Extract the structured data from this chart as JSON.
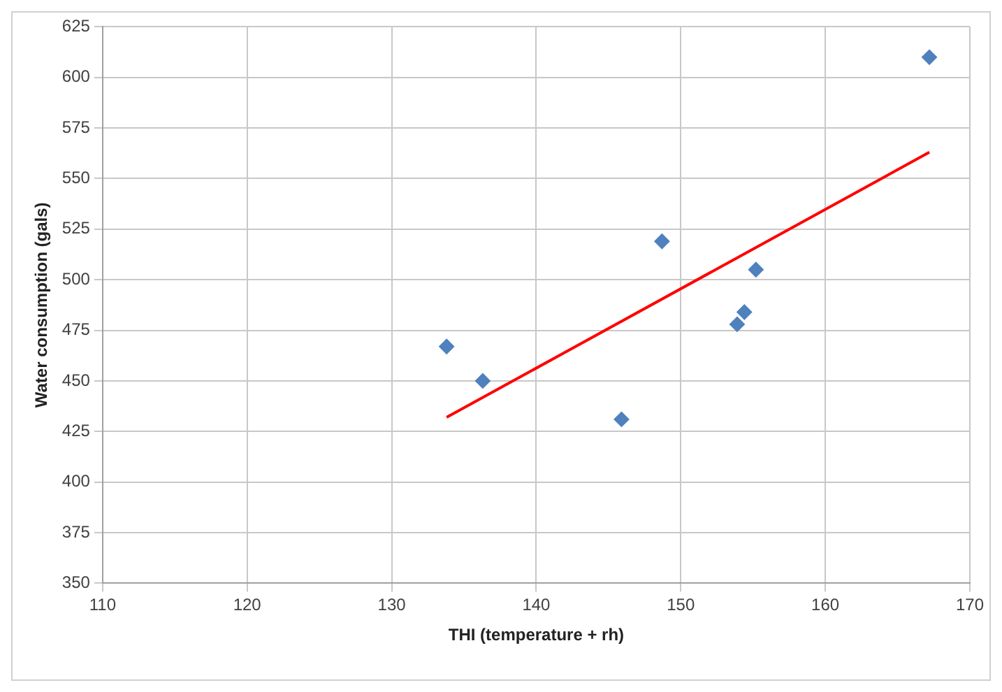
{
  "chart_data": {
    "type": "scatter",
    "xlabel": "THI (temperature + rh)",
    "ylabel": "Water consumption (gals)",
    "xlim": [
      110,
      170
    ],
    "xticks": [
      110,
      120,
      130,
      140,
      150,
      160,
      170
    ],
    "ylim": [
      350,
      625
    ],
    "yticks": [
      350,
      375,
      400,
      425,
      450,
      475,
      500,
      525,
      550,
      575,
      600,
      625
    ],
    "grid": true,
    "legend": false,
    "marker": "diamond",
    "series": [
      {
        "color": "#4f81bd",
        "x": [
          133.8,
          136.3,
          145.9,
          148.7,
          153.9,
          154.4,
          155.2,
          167.2
        ],
        "values": [
          467,
          450,
          431,
          519,
          478,
          484,
          505,
          610
        ]
      },
      {
        "type": "line",
        "color": "#ff0000",
        "marker": "none",
        "x": [
          133.8,
          167.2
        ],
        "values": [
          432,
          563
        ]
      }
    ]
  }
}
